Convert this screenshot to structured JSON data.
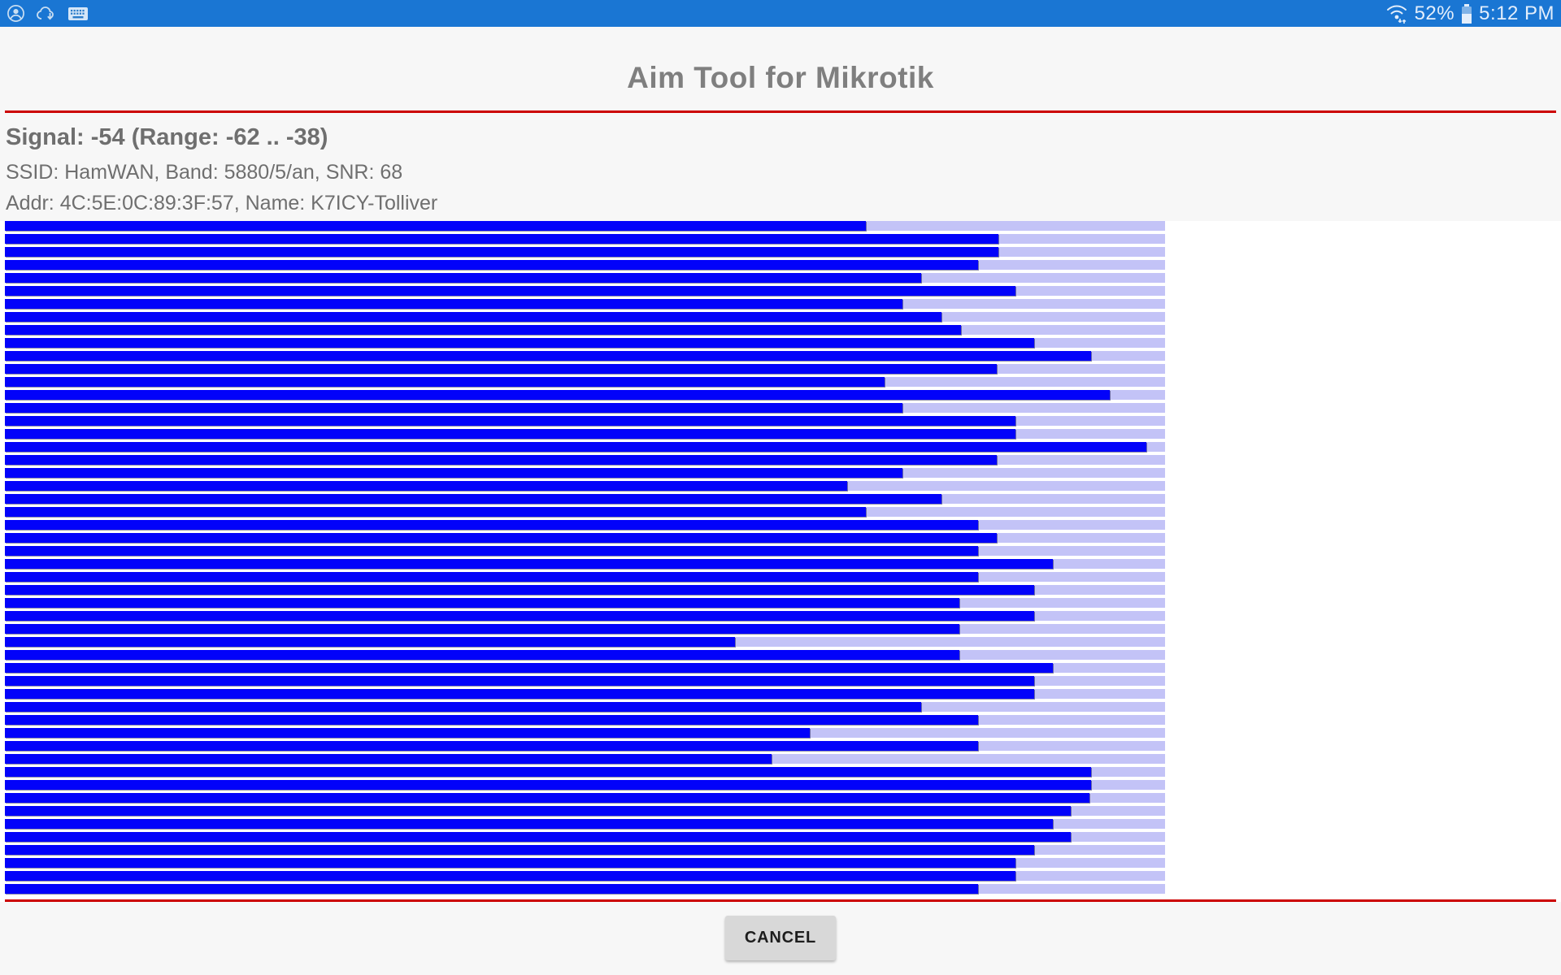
{
  "status_bar": {
    "time": "5:12 PM",
    "battery_pct": "52%",
    "icons_left": [
      "contact-icon",
      "cloud-sync-icon",
      "keyboard-icon"
    ],
    "icons_right": [
      "wifi-icon",
      "battery-icon"
    ]
  },
  "header": {
    "title": "Aim Tool for Mikrotik"
  },
  "info": {
    "signal_line": "Signal: -54 (Range: -62 .. -38)",
    "ssid_line": "SSID: HamWAN, Band: 5880/5/an, SNR: 68",
    "addr_line": "Addr: 4C:5E:0C:89:3F:57, Name: K7ICY-Tolliver"
  },
  "chart_data": {
    "type": "bar",
    "orientation": "horizontal",
    "title": "Signal strength history bars (top = oldest)",
    "signal_current": -54,
    "signal_range_min": -62,
    "signal_range_max": -38,
    "values_pct": [
      74.2,
      85.6,
      85.6,
      83.9,
      79.0,
      87.1,
      77.4,
      80.7,
      82.4,
      88.7,
      93.6,
      85.5,
      75.8,
      95.2,
      77.4,
      87.1,
      87.1,
      98.4,
      85.5,
      77.4,
      72.6,
      80.7,
      74.2,
      83.9,
      85.5,
      83.9,
      90.3,
      83.9,
      88.7,
      82.3,
      88.7,
      82.3,
      62.9,
      82.3,
      90.3,
      88.7,
      88.7,
      79.0,
      83.9,
      69.4,
      83.9,
      66.1,
      93.6,
      93.6,
      93.5,
      91.9,
      90.3,
      91.9,
      88.7,
      87.1,
      87.1,
      83.9
    ],
    "bar_color": "#0202fa",
    "track_color": "#c3c3f7",
    "grid": false,
    "legend": false,
    "xlim_pct": [
      0,
      100
    ]
  },
  "footer": {
    "cancel_label": "CANCEL"
  },
  "colors": {
    "status_blue": "#1a76d3",
    "accent_red": "#cc0000",
    "page_bg": "#f7f7f7",
    "chart_bg": "#ffffff"
  }
}
